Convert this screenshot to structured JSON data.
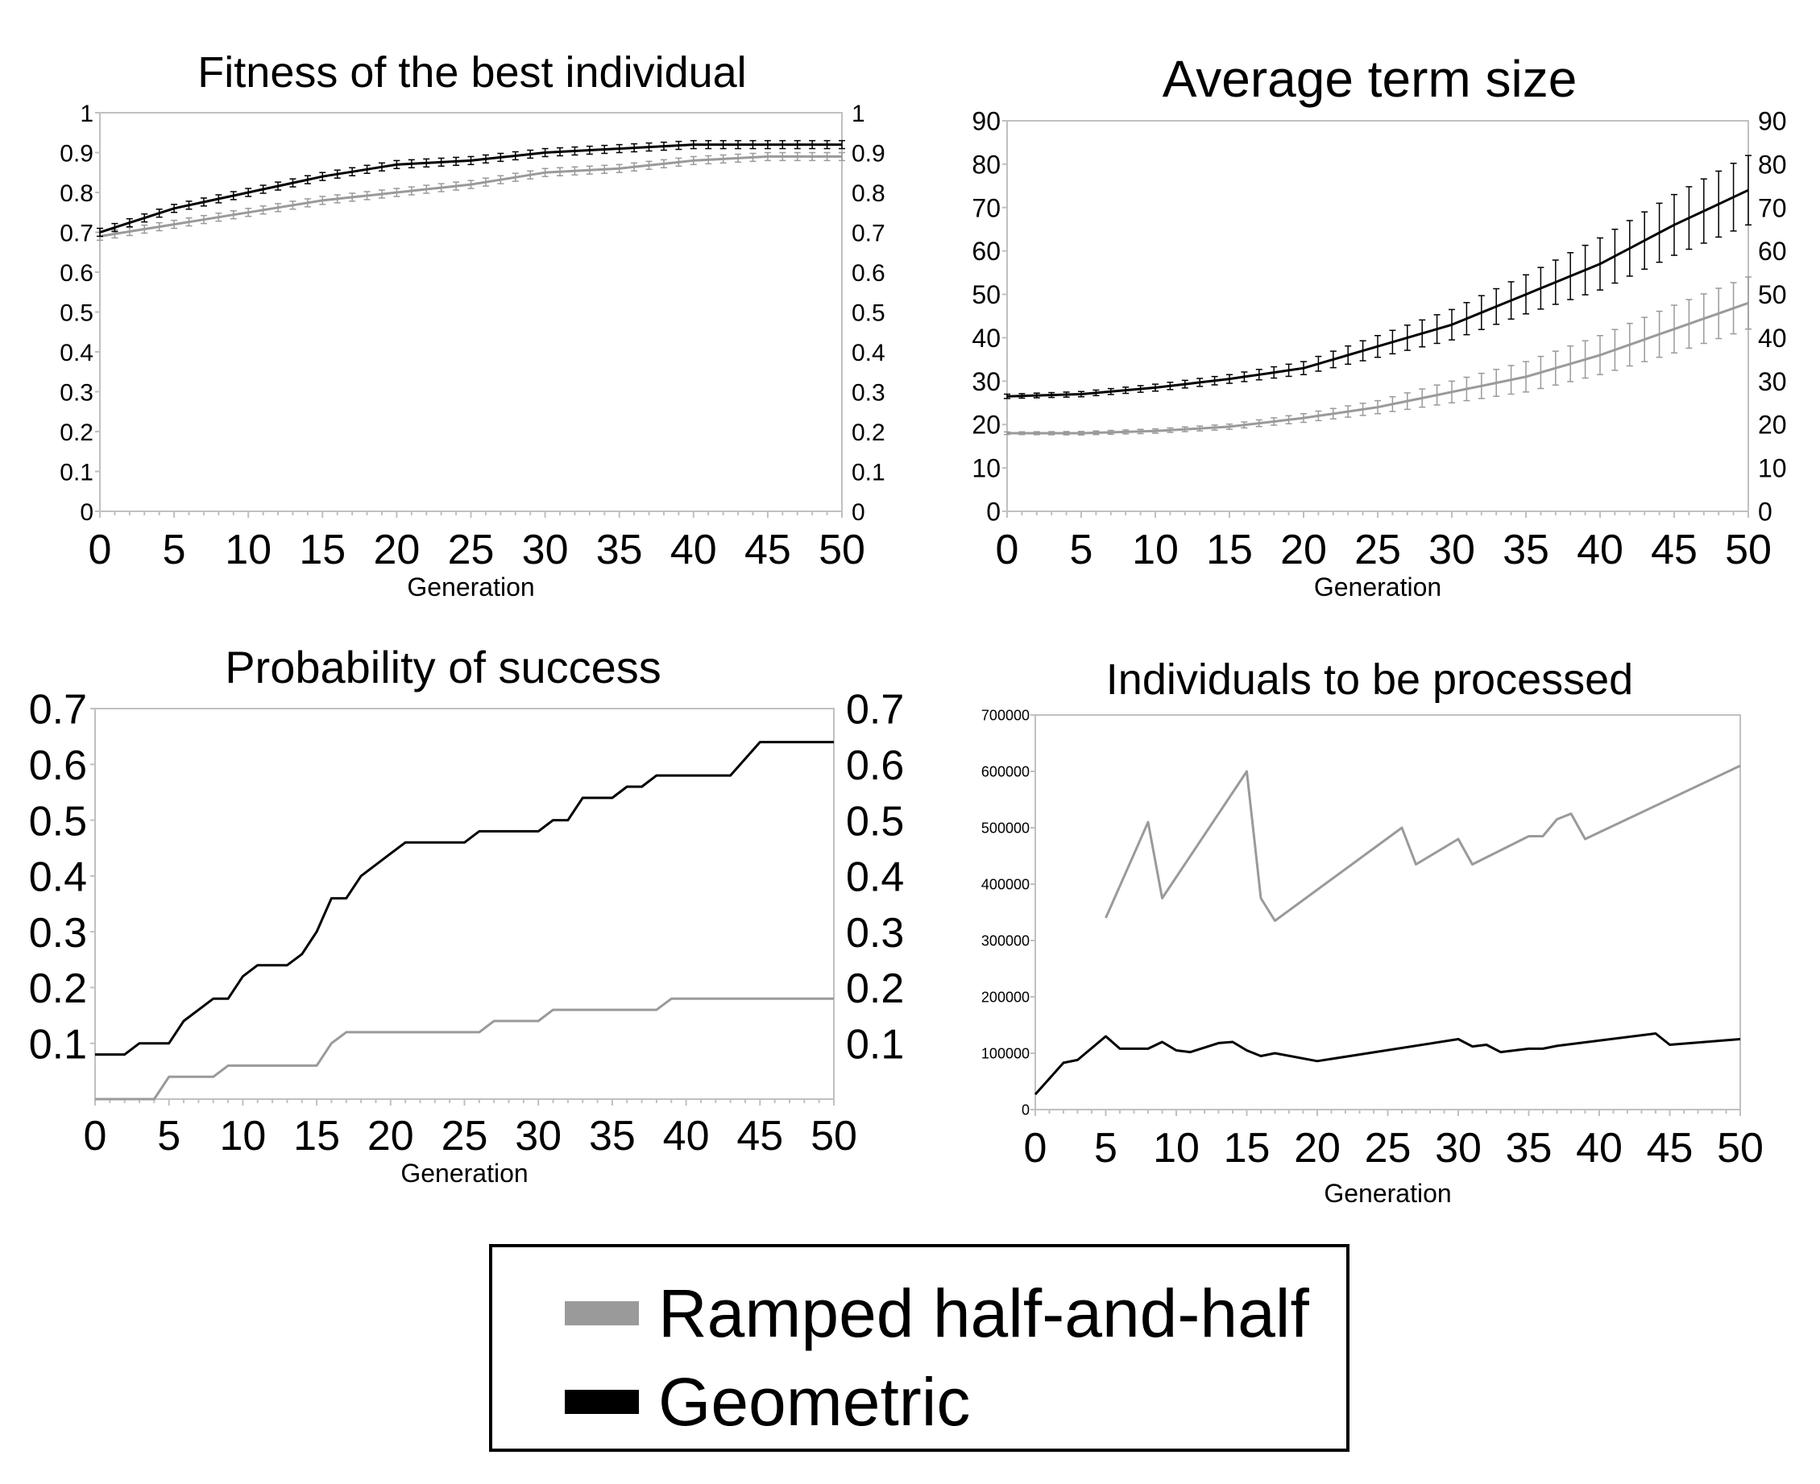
{
  "colors": {
    "ramped": "#9a9a9a",
    "geometric": "#000000",
    "frame": "#c0c0c0"
  },
  "legend": {
    "placement": "bottom-center",
    "items": [
      {
        "label": "Ramped half-and-half",
        "color": "#9a9a9a"
      },
      {
        "label": "Geometric",
        "color": "#000000"
      }
    ]
  },
  "chart_data": [
    {
      "type": "line",
      "title": "Fitness of the best individual",
      "xlabel": "Generation",
      "ylabel": "",
      "xlim": [
        0,
        50
      ],
      "ylim": [
        0,
        1
      ],
      "xticks": [
        0,
        5,
        10,
        15,
        20,
        25,
        30,
        35,
        40,
        45,
        50
      ],
      "yticks_left": [
        "0",
        "0.1",
        "0.2",
        "0.3",
        "0.4",
        "0.5",
        "0.6",
        "0.7",
        "0.8",
        "0.9",
        "1"
      ],
      "yticks_right": [
        "0",
        "0.1",
        "0.2",
        "0.3",
        "0.4",
        "0.5",
        "0.6",
        "0.7",
        "0.8",
        "0.9",
        "1"
      ],
      "error_bars": true,
      "grid": false,
      "series": [
        {
          "name": "Ramped half-and-half",
          "x": [
            0,
            5,
            10,
            15,
            20,
            25,
            30,
            35,
            40,
            45,
            50
          ],
          "y": [
            0.69,
            0.72,
            0.75,
            0.78,
            0.8,
            0.82,
            0.85,
            0.86,
            0.88,
            0.89,
            0.89
          ],
          "error": [
            0.01,
            0.01,
            0.01,
            0.01,
            0.01,
            0.01,
            0.01,
            0.01,
            0.01,
            0.01,
            0.01
          ]
        },
        {
          "name": "Geometric",
          "x": [
            0,
            5,
            10,
            15,
            20,
            25,
            30,
            35,
            40,
            45,
            50
          ],
          "y": [
            0.7,
            0.76,
            0.8,
            0.84,
            0.87,
            0.88,
            0.9,
            0.91,
            0.92,
            0.92,
            0.92
          ],
          "error": [
            0.01,
            0.01,
            0.01,
            0.01,
            0.01,
            0.01,
            0.01,
            0.01,
            0.01,
            0.01,
            0.01
          ]
        }
      ]
    },
    {
      "type": "line",
      "title": "Average term size",
      "xlabel": "Generation",
      "ylabel": "",
      "xlim": [
        0,
        50
      ],
      "ylim": [
        0,
        90
      ],
      "xticks": [
        0,
        5,
        10,
        15,
        20,
        25,
        30,
        35,
        40,
        45,
        50
      ],
      "yticks_left": [
        "0",
        "10",
        "20",
        "30",
        "40",
        "50",
        "60",
        "70",
        "80",
        "90"
      ],
      "yticks_right": [
        "0",
        "10",
        "20",
        "30",
        "40",
        "50",
        "60",
        "70",
        "80",
        "90"
      ],
      "error_bars": true,
      "grid": false,
      "series": [
        {
          "name": "Ramped half-and-half",
          "x": [
            0,
            5,
            10,
            15,
            20,
            25,
            30,
            35,
            40,
            45,
            50
          ],
          "y": [
            18,
            18,
            18.5,
            19.5,
            21.5,
            24,
            27.5,
            31,
            36,
            42,
            48
          ],
          "error": [
            0.3,
            0.4,
            0.5,
            0.6,
            1,
            1.5,
            2.5,
            3.5,
            4.5,
            5.5,
            6
          ]
        },
        {
          "name": "Geometric",
          "x": [
            0,
            5,
            10,
            15,
            20,
            25,
            30,
            35,
            40,
            45,
            50
          ],
          "y": [
            26.5,
            27,
            28.5,
            30.5,
            33,
            38,
            43,
            50,
            57,
            66,
            74
          ],
          "error": [
            0.5,
            0.6,
            0.8,
            1,
            1.5,
            2.5,
            3.5,
            4.5,
            6,
            7,
            8
          ]
        }
      ]
    },
    {
      "type": "line",
      "title": "Probability of success",
      "xlabel": "Generation",
      "ylabel": "",
      "xlim": [
        0,
        50
      ],
      "ylim": [
        0,
        0.7
      ],
      "xticks": [
        0,
        5,
        10,
        15,
        20,
        25,
        30,
        35,
        40,
        45,
        50
      ],
      "yticks_left": [
        "0.1",
        "0.2",
        "0.3",
        "0.4",
        "0.5",
        "0.6",
        "0.7"
      ],
      "yticks_right": [
        "0.1",
        "0.2",
        "0.3",
        "0.4",
        "0.5",
        "0.6",
        "0.7"
      ],
      "grid": false,
      "series": [
        {
          "name": "Ramped half-and-half",
          "x": [
            0,
            4,
            5,
            8,
            9,
            15,
            16,
            17,
            26,
            27,
            30,
            31,
            38,
            39,
            50
          ],
          "y": [
            0,
            0,
            0.04,
            0.04,
            0.06,
            0.06,
            0.1,
            0.12,
            0.12,
            0.14,
            0.14,
            0.16,
            0.16,
            0.18,
            0.18
          ]
        },
        {
          "name": "Geometric",
          "x": [
            0,
            2,
            3,
            5,
            6,
            8,
            9,
            10,
            11,
            13,
            14,
            15,
            16,
            17,
            18,
            20,
            21,
            25,
            26,
            30,
            31,
            32,
            33,
            35,
            36,
            37,
            38,
            43,
            45,
            50
          ],
          "y": [
            0.08,
            0.08,
            0.1,
            0.1,
            0.14,
            0.18,
            0.18,
            0.22,
            0.24,
            0.24,
            0.26,
            0.3,
            0.36,
            0.36,
            0.4,
            0.44,
            0.46,
            0.46,
            0.48,
            0.48,
            0.5,
            0.5,
            0.54,
            0.54,
            0.56,
            0.56,
            0.58,
            0.58,
            0.64,
            0.64
          ]
        }
      ]
    },
    {
      "type": "line",
      "title": "Individuals to be processed",
      "xlabel": "Generation",
      "ylabel": "",
      "xlim": [
        0,
        50
      ],
      "ylim": [
        0,
        700000
      ],
      "xticks": [
        0,
        5,
        10,
        15,
        20,
        25,
        30,
        35,
        40,
        45,
        50
      ],
      "yticks_left": [
        "0",
        "100000",
        "200000",
        "300000",
        "400000",
        "500000",
        "600000",
        "700000"
      ],
      "yticks_right": [],
      "grid": false,
      "series": [
        {
          "name": "Ramped half-and-half",
          "x": [
            5,
            8,
            9,
            15,
            16,
            17,
            26,
            27,
            30,
            31,
            35,
            36,
            37,
            38,
            39,
            50
          ],
          "y": [
            340000,
            510000,
            375000,
            600000,
            375000,
            335000,
            500000,
            435000,
            480000,
            435000,
            485000,
            485000,
            515000,
            525000,
            480000,
            610000
          ]
        },
        {
          "name": "Geometric",
          "x": [
            0,
            2,
            3,
            5,
            6,
            8,
            9,
            10,
            11,
            13,
            14,
            15,
            16,
            17,
            20,
            30,
            31,
            32,
            33,
            35,
            36,
            37,
            44,
            45,
            50
          ],
          "y": [
            27000,
            83000,
            88000,
            130000,
            108000,
            108000,
            120000,
            105000,
            102000,
            118000,
            120000,
            105000,
            95000,
            100000,
            86000,
            125000,
            112000,
            115000,
            102000,
            108000,
            108000,
            113000,
            135000,
            115000,
            125000
          ]
        }
      ]
    }
  ]
}
